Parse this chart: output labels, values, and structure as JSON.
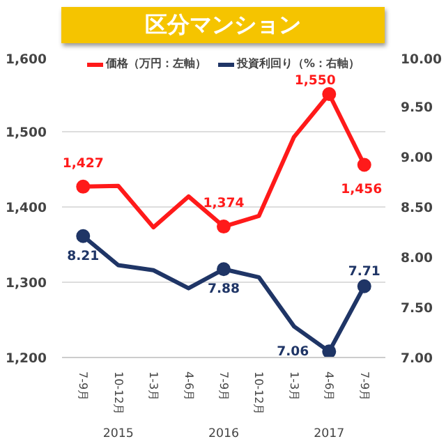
{
  "chart_data": {
    "type": "line",
    "title": "区分マンション",
    "categories": [
      "7-9月",
      "10-12月",
      "1-3月",
      "4-6月",
      "7-9月",
      "10-12月",
      "1-3月",
      "4-6月",
      "7-9月"
    ],
    "annotations": [
      "2015",
      "2016",
      "2017"
    ],
    "series": [
      {
        "name": "価格（万円：左軸）",
        "color": "#ff1a1a",
        "values": [
          1427,
          1428,
          1373,
          1414,
          1374,
          1388,
          1493,
          1550,
          1456
        ],
        "value_labels": [
          "1,427",
          null,
          null,
          null,
          "1,374",
          null,
          null,
          "1,550",
          "1,456"
        ]
      },
      {
        "name": "投資利回り（%：右軸）",
        "color": "#1f3566",
        "axis": "y2",
        "values": [
          8.21,
          7.92,
          7.87,
          7.69,
          7.88,
          7.8,
          7.31,
          7.06,
          7.71
        ],
        "value_labels": [
          "8.21",
          null,
          null,
          null,
          "7.88",
          null,
          null,
          "7.06",
          "7.71"
        ]
      }
    ],
    "ylim": [
      1200,
      1600
    ],
    "yticks": [
      {
        "value": 1200,
        "label": "1,200"
      },
      {
        "value": 1300,
        "label": "1,300"
      },
      {
        "value": 1400,
        "label": "1,400"
      },
      {
        "value": 1500,
        "label": "1,500"
      },
      {
        "value": 1600,
        "label": "1,600"
      }
    ],
    "y2lim": [
      7,
      10
    ],
    "y2ticks": [
      {
        "value": 7,
        "label": "7.00"
      },
      {
        "value": 7.5,
        "label": "7.50"
      },
      {
        "value": 8,
        "label": "8.00"
      },
      {
        "value": 8.5,
        "label": "8.50"
      },
      {
        "value": 9,
        "label": "9.00"
      },
      {
        "value": 9.5,
        "label": "9.50"
      },
      {
        "value": 10,
        "label": "10.00"
      }
    ],
    "grid": "y",
    "legend": "top",
    "line_style": "solid"
  }
}
